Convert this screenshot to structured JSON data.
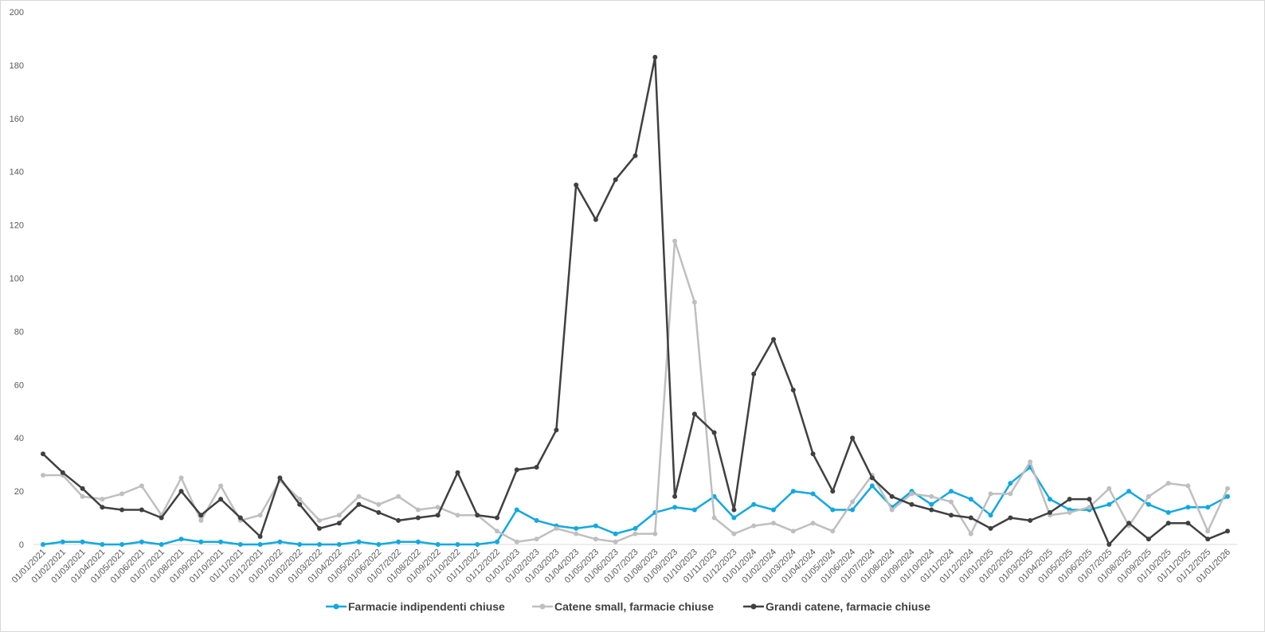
{
  "chart_data": {
    "type": "line",
    "title": "",
    "xlabel": "",
    "ylabel": "",
    "ylim": [
      0,
      200
    ],
    "yticks": [
      0,
      20,
      40,
      60,
      80,
      100,
      120,
      140,
      160,
      180,
      200
    ],
    "grid": false,
    "legend_position": "bottom",
    "categories": [
      "01/01/2021",
      "01/02/2021",
      "01/03/2021",
      "01/04/2021",
      "01/05/2021",
      "01/06/2021",
      "01/07/2021",
      "01/08/2021",
      "01/09/2021",
      "01/10/2021",
      "01/11/2021",
      "01/12/2021",
      "01/01/2022",
      "01/02/2022",
      "01/03/2022",
      "01/04/2022",
      "01/05/2022",
      "01/06/2022",
      "01/07/2022",
      "01/08/2022",
      "01/09/2022",
      "01/10/2022",
      "01/11/2022",
      "01/12/2022",
      "01/01/2023",
      "01/02/2023",
      "01/03/2023",
      "01/04/2023",
      "01/05/2023",
      "01/06/2023",
      "01/07/2023",
      "01/08/2023",
      "01/09/2023",
      "01/10/2023",
      "01/11/2023",
      "01/12/2023",
      "01/01/2024",
      "01/02/2024",
      "01/03/2024",
      "01/04/2024",
      "01/05/2024",
      "01/06/2024",
      "01/07/2024",
      "01/08/2024",
      "01/09/2024",
      "01/10/2024",
      "01/11/2024",
      "01/12/2024",
      "01/01/2025",
      "01/02/2025",
      "01/03/2025",
      "01/04/2025",
      "01/05/2025",
      "01/06/2025",
      "01/07/2025",
      "01/08/2025",
      "01/09/2025",
      "01/10/2025",
      "01/11/2025",
      "01/12/2025",
      "01/01/2026"
    ],
    "series": [
      {
        "name": "Farmacie indipendenti chiuse",
        "color": "#12a8e0",
        "values": [
          0,
          1,
          1,
          0,
          0,
          1,
          0,
          2,
          1,
          1,
          0,
          0,
          1,
          0,
          0,
          0,
          1,
          0,
          1,
          1,
          0,
          0,
          0,
          1,
          13,
          9,
          7,
          6,
          7,
          4,
          6,
          12,
          14,
          13,
          18,
          10,
          15,
          13,
          20,
          19,
          13,
          13,
          22,
          14,
          20,
          15,
          20,
          17,
          11,
          23,
          29,
          17,
          13,
          13,
          15,
          20,
          15,
          12,
          14,
          14,
          18
        ]
      },
      {
        "name": "Catene small, farmacie chiuse",
        "color": "#bfbfbf",
        "values": [
          26,
          26,
          18,
          17,
          19,
          22,
          11,
          25,
          9,
          22,
          9,
          11,
          24,
          17,
          9,
          11,
          18,
          15,
          18,
          13,
          14,
          11,
          11,
          5,
          1,
          2,
          6,
          4,
          2,
          1,
          4,
          4,
          114,
          91,
          10,
          4,
          7,
          8,
          5,
          8,
          5,
          16,
          26,
          13,
          19,
          18,
          16,
          4,
          19,
          19,
          31,
          11,
          12,
          14,
          21,
          7,
          18,
          23,
          22,
          5,
          21
        ]
      },
      {
        "name": "Grandi catene, farmacie chiuse",
        "color": "#404040",
        "values": [
          34,
          27,
          21,
          14,
          13,
          13,
          10,
          20,
          11,
          17,
          10,
          3,
          25,
          15,
          6,
          8,
          15,
          12,
          9,
          10,
          11,
          27,
          11,
          10,
          28,
          29,
          43,
          135,
          122,
          137,
          146,
          183,
          18,
          49,
          42,
          13,
          64,
          77,
          58,
          34,
          20,
          40,
          25,
          18,
          15,
          13,
          11,
          10,
          6,
          10,
          9,
          12,
          17,
          17,
          0,
          8,
          2,
          8,
          8,
          2,
          5
        ]
      }
    ]
  }
}
